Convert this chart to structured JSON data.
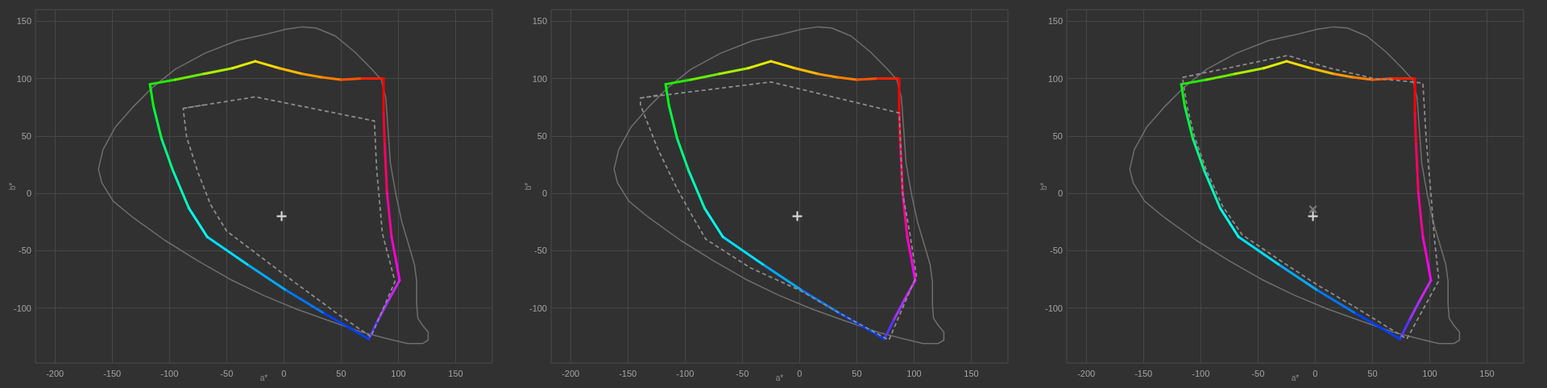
{
  "chart_data": [
    {
      "type": "line",
      "xlabel": "a*",
      "ylabel": "b*",
      "xlim": [
        -217,
        182
      ],
      "ylim": [
        -148,
        160
      ],
      "xticks": [
        -200,
        -150,
        -100,
        -50,
        0,
        50,
        100,
        150
      ],
      "yticks": [
        -100,
        -50,
        0,
        50,
        100,
        150
      ],
      "grid": true,
      "series": [
        {
          "color": "#6e6e6e",
          "line_style": "solid",
          "x": [
            -162,
            -158,
            -147,
            -132,
            -115,
            -95,
            -69,
            -41,
            -18,
            2,
            16,
            28,
            45,
            62,
            76,
            85,
            89,
            91,
            93,
            98,
            103,
            109,
            114,
            116,
            116,
            117,
            121,
            126,
            126,
            121,
            108,
            91,
            68,
            39,
            11,
            -18,
            -47,
            -75,
            -104,
            -132,
            -149,
            -159,
            -162,
            -158
          ],
          "values": [
            21,
            38,
            58,
            75,
            92,
            108,
            122,
            133,
            138,
            143,
            145,
            144,
            137,
            123,
            109,
            99,
            83,
            55,
            26,
            -2,
            -25,
            -45,
            -62,
            -77,
            -97,
            -109,
            -115,
            -121,
            -128,
            -131,
            -131,
            -127,
            -121,
            -111,
            -101,
            -89,
            -75,
            -59,
            -41,
            -21,
            -7,
            9,
            21,
            38
          ]
        },
        {
          "color": "#22ee00",
          "x": [
            -117,
            -95
          ],
          "values": [
            95,
            99
          ]
        },
        {
          "color": "#66ee00",
          "x": [
            -95,
            -70
          ],
          "values": [
            99,
            104
          ]
        },
        {
          "color": "#aaee00",
          "x": [
            -70,
            -45
          ],
          "values": [
            104,
            109
          ]
        },
        {
          "color": "#ddf000",
          "x": [
            -45,
            -25
          ],
          "values": [
            109,
            115
          ]
        },
        {
          "color": "#ffdd00",
          "x": [
            -25,
            -4
          ],
          "values": [
            115,
            109
          ]
        },
        {
          "color": "#ffbb00",
          "x": [
            -4,
            16
          ],
          "values": [
            109,
            104
          ]
        },
        {
          "color": "#ff9900",
          "x": [
            16,
            33
          ],
          "values": [
            104,
            101
          ]
        },
        {
          "color": "#ff8000",
          "x": [
            33,
            50
          ],
          "values": [
            101,
            99
          ]
        },
        {
          "color": "#ff5500",
          "x": [
            50,
            68
          ],
          "values": [
            99,
            100
          ]
        },
        {
          "color": "#ff2200",
          "x": [
            68,
            87
          ],
          "values": [
            100,
            100
          ]
        },
        {
          "color": "#ff0000",
          "x": [
            87,
            87
          ],
          "values": [
            100,
            70
          ]
        },
        {
          "color": "#ff0030",
          "x": [
            87,
            88
          ],
          "values": [
            70,
            43
          ]
        },
        {
          "color": "#ff0066",
          "x": [
            88,
            90
          ],
          "values": [
            43,
            1
          ]
        },
        {
          "color": "#ff00a0",
          "x": [
            90,
            94
          ],
          "values": [
            1,
            -38
          ]
        },
        {
          "color": "#ff00d0",
          "x": [
            94,
            98
          ],
          "values": [
            -38,
            -59
          ]
        },
        {
          "color": "#ff00f0",
          "x": [
            98,
            101
          ],
          "values": [
            -59,
            -76
          ]
        },
        {
          "color": "#cc22ff",
          "x": [
            101,
            91
          ],
          "values": [
            -76,
            -94
          ]
        },
        {
          "color": "#9933ff",
          "x": [
            91,
            82
          ],
          "values": [
            -94,
            -111
          ]
        },
        {
          "color": "#5533ff",
          "x": [
            82,
            74
          ],
          "values": [
            -111,
            -127
          ]
        },
        {
          "color": "#0040ff",
          "x": [
            74,
            34
          ],
          "values": [
            -127,
            -104
          ]
        },
        {
          "color": "#0077ff",
          "x": [
            34,
            1
          ],
          "values": [
            -104,
            -84
          ]
        },
        {
          "color": "#00aaff",
          "x": [
            1,
            -32
          ],
          "values": [
            -84,
            -62
          ]
        },
        {
          "color": "#00ddff",
          "x": [
            -32,
            -67
          ],
          "values": [
            -62,
            -38
          ]
        },
        {
          "color": "#00ffee",
          "x": [
            -67,
            -83
          ],
          "values": [
            -38,
            -13
          ]
        },
        {
          "color": "#00ffbb",
          "x": [
            -83,
            -97
          ],
          "values": [
            -13,
            20
          ]
        },
        {
          "color": "#00ff80",
          "x": [
            -97,
            -107
          ],
          "values": [
            20,
            48
          ]
        },
        {
          "color": "#00ff44",
          "x": [
            -107,
            -114
          ],
          "values": [
            48,
            76
          ]
        },
        {
          "color": "#00ff11",
          "x": [
            -114,
            -117
          ],
          "values": [
            76,
            95
          ]
        },
        {
          "color": "#8c8c8c",
          "line_style": "dashed",
          "x": [
            -88,
            -25,
            79,
            81,
            86,
            97,
            76,
            48,
            -1,
            -50,
            -64,
            -75,
            -85,
            -88,
            -70
          ],
          "values": [
            74,
            84,
            63,
            21,
            -35,
            -77,
            -125,
            -106,
            -70,
            -33,
            -10,
            18,
            49,
            74,
            77
          ]
        },
        {
          "type": "scatter",
          "color": "#ffffff",
          "marker": "cross",
          "x": [
            -2
          ],
          "values": [
            -20
          ]
        }
      ]
    },
    {
      "type": "line",
      "xlabel": "a*",
      "ylabel": "b*",
      "xlim": [
        -217,
        182
      ],
      "ylim": [
        -148,
        160
      ],
      "xticks": [
        -200,
        -150,
        -100,
        -50,
        0,
        50,
        100,
        150
      ],
      "yticks": [
        -100,
        -50,
        0,
        50,
        100,
        150
      ],
      "grid": true,
      "series": [
        {
          "color": "#6e6e6e",
          "line_style": "solid",
          "x": [
            -162,
            -158,
            -147,
            -132,
            -115,
            -95,
            -69,
            -41,
            -18,
            2,
            16,
            28,
            45,
            62,
            76,
            85,
            89,
            91,
            93,
            98,
            103,
            109,
            114,
            116,
            116,
            117,
            121,
            126,
            126,
            121,
            108,
            91,
            68,
            39,
            11,
            -18,
            -47,
            -75,
            -104,
            -132,
            -149,
            -159,
            -162,
            -158
          ],
          "values": [
            21,
            38,
            58,
            75,
            92,
            108,
            122,
            133,
            138,
            143,
            145,
            144,
            137,
            123,
            109,
            99,
            83,
            55,
            26,
            -2,
            -25,
            -45,
            -62,
            -77,
            -97,
            -109,
            -115,
            -121,
            -128,
            -131,
            -131,
            -127,
            -121,
            -111,
            -101,
            -89,
            -75,
            -59,
            -41,
            -21,
            -7,
            9,
            21,
            38
          ]
        },
        {
          "color": "#22ee00",
          "x": [
            -117,
            -95
          ],
          "values": [
            95,
            99
          ]
        },
        {
          "color": "#66ee00",
          "x": [
            -95,
            -70
          ],
          "values": [
            99,
            104
          ]
        },
        {
          "color": "#aaee00",
          "x": [
            -70,
            -45
          ],
          "values": [
            104,
            109
          ]
        },
        {
          "color": "#ddf000",
          "x": [
            -45,
            -25
          ],
          "values": [
            109,
            115
          ]
        },
        {
          "color": "#ffdd00",
          "x": [
            -25,
            -4
          ],
          "values": [
            115,
            109
          ]
        },
        {
          "color": "#ffbb00",
          "x": [
            -4,
            16
          ],
          "values": [
            109,
            104
          ]
        },
        {
          "color": "#ff9900",
          "x": [
            16,
            33
          ],
          "values": [
            104,
            101
          ]
        },
        {
          "color": "#ff8000",
          "x": [
            33,
            50
          ],
          "values": [
            101,
            99
          ]
        },
        {
          "color": "#ff5500",
          "x": [
            50,
            68
          ],
          "values": [
            99,
            100
          ]
        },
        {
          "color": "#ff2200",
          "x": [
            68,
            87
          ],
          "values": [
            100,
            100
          ]
        },
        {
          "color": "#ff0000",
          "x": [
            87,
            87
          ],
          "values": [
            100,
            70
          ]
        },
        {
          "color": "#ff0030",
          "x": [
            87,
            88
          ],
          "values": [
            70,
            43
          ]
        },
        {
          "color": "#ff0066",
          "x": [
            88,
            90
          ],
          "values": [
            43,
            1
          ]
        },
        {
          "color": "#ff00a0",
          "x": [
            90,
            94
          ],
          "values": [
            1,
            -38
          ]
        },
        {
          "color": "#ff00d0",
          "x": [
            94,
            98
          ],
          "values": [
            -38,
            -59
          ]
        },
        {
          "color": "#ff00f0",
          "x": [
            98,
            101
          ],
          "values": [
            -59,
            -76
          ]
        },
        {
          "color": "#cc22ff",
          "x": [
            101,
            91
          ],
          "values": [
            -76,
            -94
          ]
        },
        {
          "color": "#9933ff",
          "x": [
            91,
            82
          ],
          "values": [
            -94,
            -111
          ]
        },
        {
          "color": "#5533ff",
          "x": [
            82,
            74
          ],
          "values": [
            -111,
            -127
          ]
        },
        {
          "color": "#0040ff",
          "x": [
            74,
            34
          ],
          "values": [
            -127,
            -104
          ]
        },
        {
          "color": "#0077ff",
          "x": [
            34,
            1
          ],
          "values": [
            -104,
            -84
          ]
        },
        {
          "color": "#00aaff",
          "x": [
            1,
            -32
          ],
          "values": [
            -84,
            -62
          ]
        },
        {
          "color": "#00ddff",
          "x": [
            -32,
            -67
          ],
          "values": [
            -62,
            -38
          ]
        },
        {
          "color": "#00ffee",
          "x": [
            -67,
            -83
          ],
          "values": [
            -38,
            -13
          ]
        },
        {
          "color": "#00ffbb",
          "x": [
            -83,
            -97
          ],
          "values": [
            -13,
            20
          ]
        },
        {
          "color": "#00ff80",
          "x": [
            -97,
            -107
          ],
          "values": [
            20,
            48
          ]
        },
        {
          "color": "#00ff44",
          "x": [
            -107,
            -114
          ],
          "values": [
            48,
            76
          ]
        },
        {
          "color": "#00ff11",
          "x": [
            -114,
            -117
          ],
          "values": [
            76,
            95
          ]
        },
        {
          "color": "#8c8c8c",
          "line_style": "dashed",
          "x": [
            -139,
            -25,
            87,
            90,
            97,
            102,
            78,
            34,
            1,
            -43,
            -82,
            -93,
            -107,
            -124,
            -139,
            -139,
            -120
          ],
          "values": [
            83,
            97,
            70,
            0,
            -39,
            -72,
            -128,
            -104,
            -85,
            -65,
            -40,
            -21,
            4,
            39,
            77,
            83,
            86
          ]
        },
        {
          "type": "scatter",
          "color": "#ffffff",
          "marker": "cross",
          "x": [
            -2
          ],
          "values": [
            -20
          ]
        }
      ]
    },
    {
      "type": "line",
      "xlabel": "a*",
      "ylabel": "b*",
      "xlim": [
        -217,
        182
      ],
      "ylim": [
        -148,
        160
      ],
      "xticks": [
        -200,
        -150,
        -100,
        -50,
        0,
        50,
        100,
        150
      ],
      "yticks": [
        -100,
        -50,
        0,
        50,
        100,
        150
      ],
      "grid": true,
      "series": [
        {
          "color": "#6e6e6e",
          "line_style": "solid",
          "x": [
            -162,
            -158,
            -147,
            -132,
            -115,
            -95,
            -69,
            -41,
            -18,
            2,
            16,
            28,
            45,
            62,
            76,
            85,
            89,
            91,
            93,
            98,
            103,
            109,
            114,
            116,
            116,
            117,
            121,
            126,
            126,
            121,
            108,
            91,
            68,
            39,
            11,
            -18,
            -47,
            -75,
            -104,
            -132,
            -149,
            -159,
            -162,
            -158
          ],
          "values": [
            21,
            38,
            58,
            75,
            92,
            108,
            122,
            133,
            138,
            143,
            145,
            144,
            137,
            123,
            109,
            99,
            83,
            55,
            26,
            -2,
            -25,
            -45,
            -62,
            -77,
            -97,
            -109,
            -115,
            -121,
            -128,
            -131,
            -131,
            -127,
            -121,
            -111,
            -101,
            -89,
            -75,
            -59,
            -41,
            -21,
            -7,
            9,
            21,
            38
          ]
        },
        {
          "color": "#22ee00",
          "x": [
            -117,
            -95
          ],
          "values": [
            95,
            99
          ]
        },
        {
          "color": "#66ee00",
          "x": [
            -95,
            -70
          ],
          "values": [
            99,
            104
          ]
        },
        {
          "color": "#aaee00",
          "x": [
            -70,
            -45
          ],
          "values": [
            104,
            109
          ]
        },
        {
          "color": "#ddf000",
          "x": [
            -45,
            -25
          ],
          "values": [
            109,
            115
          ]
        },
        {
          "color": "#ffdd00",
          "x": [
            -25,
            -4
          ],
          "values": [
            115,
            109
          ]
        },
        {
          "color": "#ffbb00",
          "x": [
            -4,
            16
          ],
          "values": [
            109,
            104
          ]
        },
        {
          "color": "#ff9900",
          "x": [
            16,
            33
          ],
          "values": [
            104,
            101
          ]
        },
        {
          "color": "#ff8000",
          "x": [
            33,
            50
          ],
          "values": [
            101,
            99
          ]
        },
        {
          "color": "#ff5500",
          "x": [
            50,
            68
          ],
          "values": [
            99,
            100
          ]
        },
        {
          "color": "#ff2200",
          "x": [
            68,
            87
          ],
          "values": [
            100,
            100
          ]
        },
        {
          "color": "#ff0000",
          "x": [
            87,
            87
          ],
          "values": [
            100,
            70
          ]
        },
        {
          "color": "#ff0030",
          "x": [
            87,
            88
          ],
          "values": [
            70,
            43
          ]
        },
        {
          "color": "#ff0066",
          "x": [
            88,
            90
          ],
          "values": [
            43,
            1
          ]
        },
        {
          "color": "#ff00a0",
          "x": [
            90,
            94
          ],
          "values": [
            1,
            -38
          ]
        },
        {
          "color": "#ff00d0",
          "x": [
            94,
            98
          ],
          "values": [
            -38,
            -59
          ]
        },
        {
          "color": "#ff00f0",
          "x": [
            98,
            101
          ],
          "values": [
            -59,
            -76
          ]
        },
        {
          "color": "#cc22ff",
          "x": [
            101,
            91
          ],
          "values": [
            -76,
            -94
          ]
        },
        {
          "color": "#9933ff",
          "x": [
            91,
            82
          ],
          "values": [
            -94,
            -111
          ]
        },
        {
          "color": "#5533ff",
          "x": [
            82,
            74
          ],
          "values": [
            -111,
            -127
          ]
        },
        {
          "color": "#0040ff",
          "x": [
            74,
            34
          ],
          "values": [
            -127,
            -104
          ]
        },
        {
          "color": "#0077ff",
          "x": [
            34,
            1
          ],
          "values": [
            -104,
            -84
          ]
        },
        {
          "color": "#00aaff",
          "x": [
            1,
            -32
          ],
          "values": [
            -84,
            -62
          ]
        },
        {
          "color": "#00ddff",
          "x": [
            -32,
            -67
          ],
          "values": [
            -62,
            -38
          ]
        },
        {
          "color": "#00ffee",
          "x": [
            -67,
            -83
          ],
          "values": [
            -38,
            -13
          ]
        },
        {
          "color": "#00ffbb",
          "x": [
            -83,
            -97
          ],
          "values": [
            -13,
            20
          ]
        },
        {
          "color": "#00ff80",
          "x": [
            -97,
            -107
          ],
          "values": [
            20,
            48
          ]
        },
        {
          "color": "#00ff44",
          "x": [
            -107,
            -114
          ],
          "values": [
            48,
            76
          ]
        },
        {
          "color": "#00ff11",
          "x": [
            -114,
            -117
          ],
          "values": [
            76,
            95
          ]
        },
        {
          "color": "#8c8c8c",
          "line_style": "dashed",
          "x": [
            -116,
            -72,
            -24,
            13,
            51,
            75,
            94,
            97,
            101,
            104,
            108,
            80,
            36,
            2,
            -30,
            -64,
            -81,
            -95,
            -105,
            -112,
            -116,
            -100
          ],
          "values": [
            101,
            110,
            120,
            109,
            100,
            98,
            96,
            46,
            0,
            -39,
            -76,
            -127,
            -100,
            -80,
            -59,
            -36,
            -11,
            20,
            48,
            76,
            101,
            104
          ]
        },
        {
          "type": "scatter",
          "color": "#8c8c8c",
          "marker": "x",
          "x": [
            -2
          ],
          "values": [
            -14
          ]
        },
        {
          "type": "scatter",
          "color": "#ffffff",
          "marker": "cross",
          "x": [
            -2
          ],
          "values": [
            -20
          ]
        }
      ]
    }
  ]
}
